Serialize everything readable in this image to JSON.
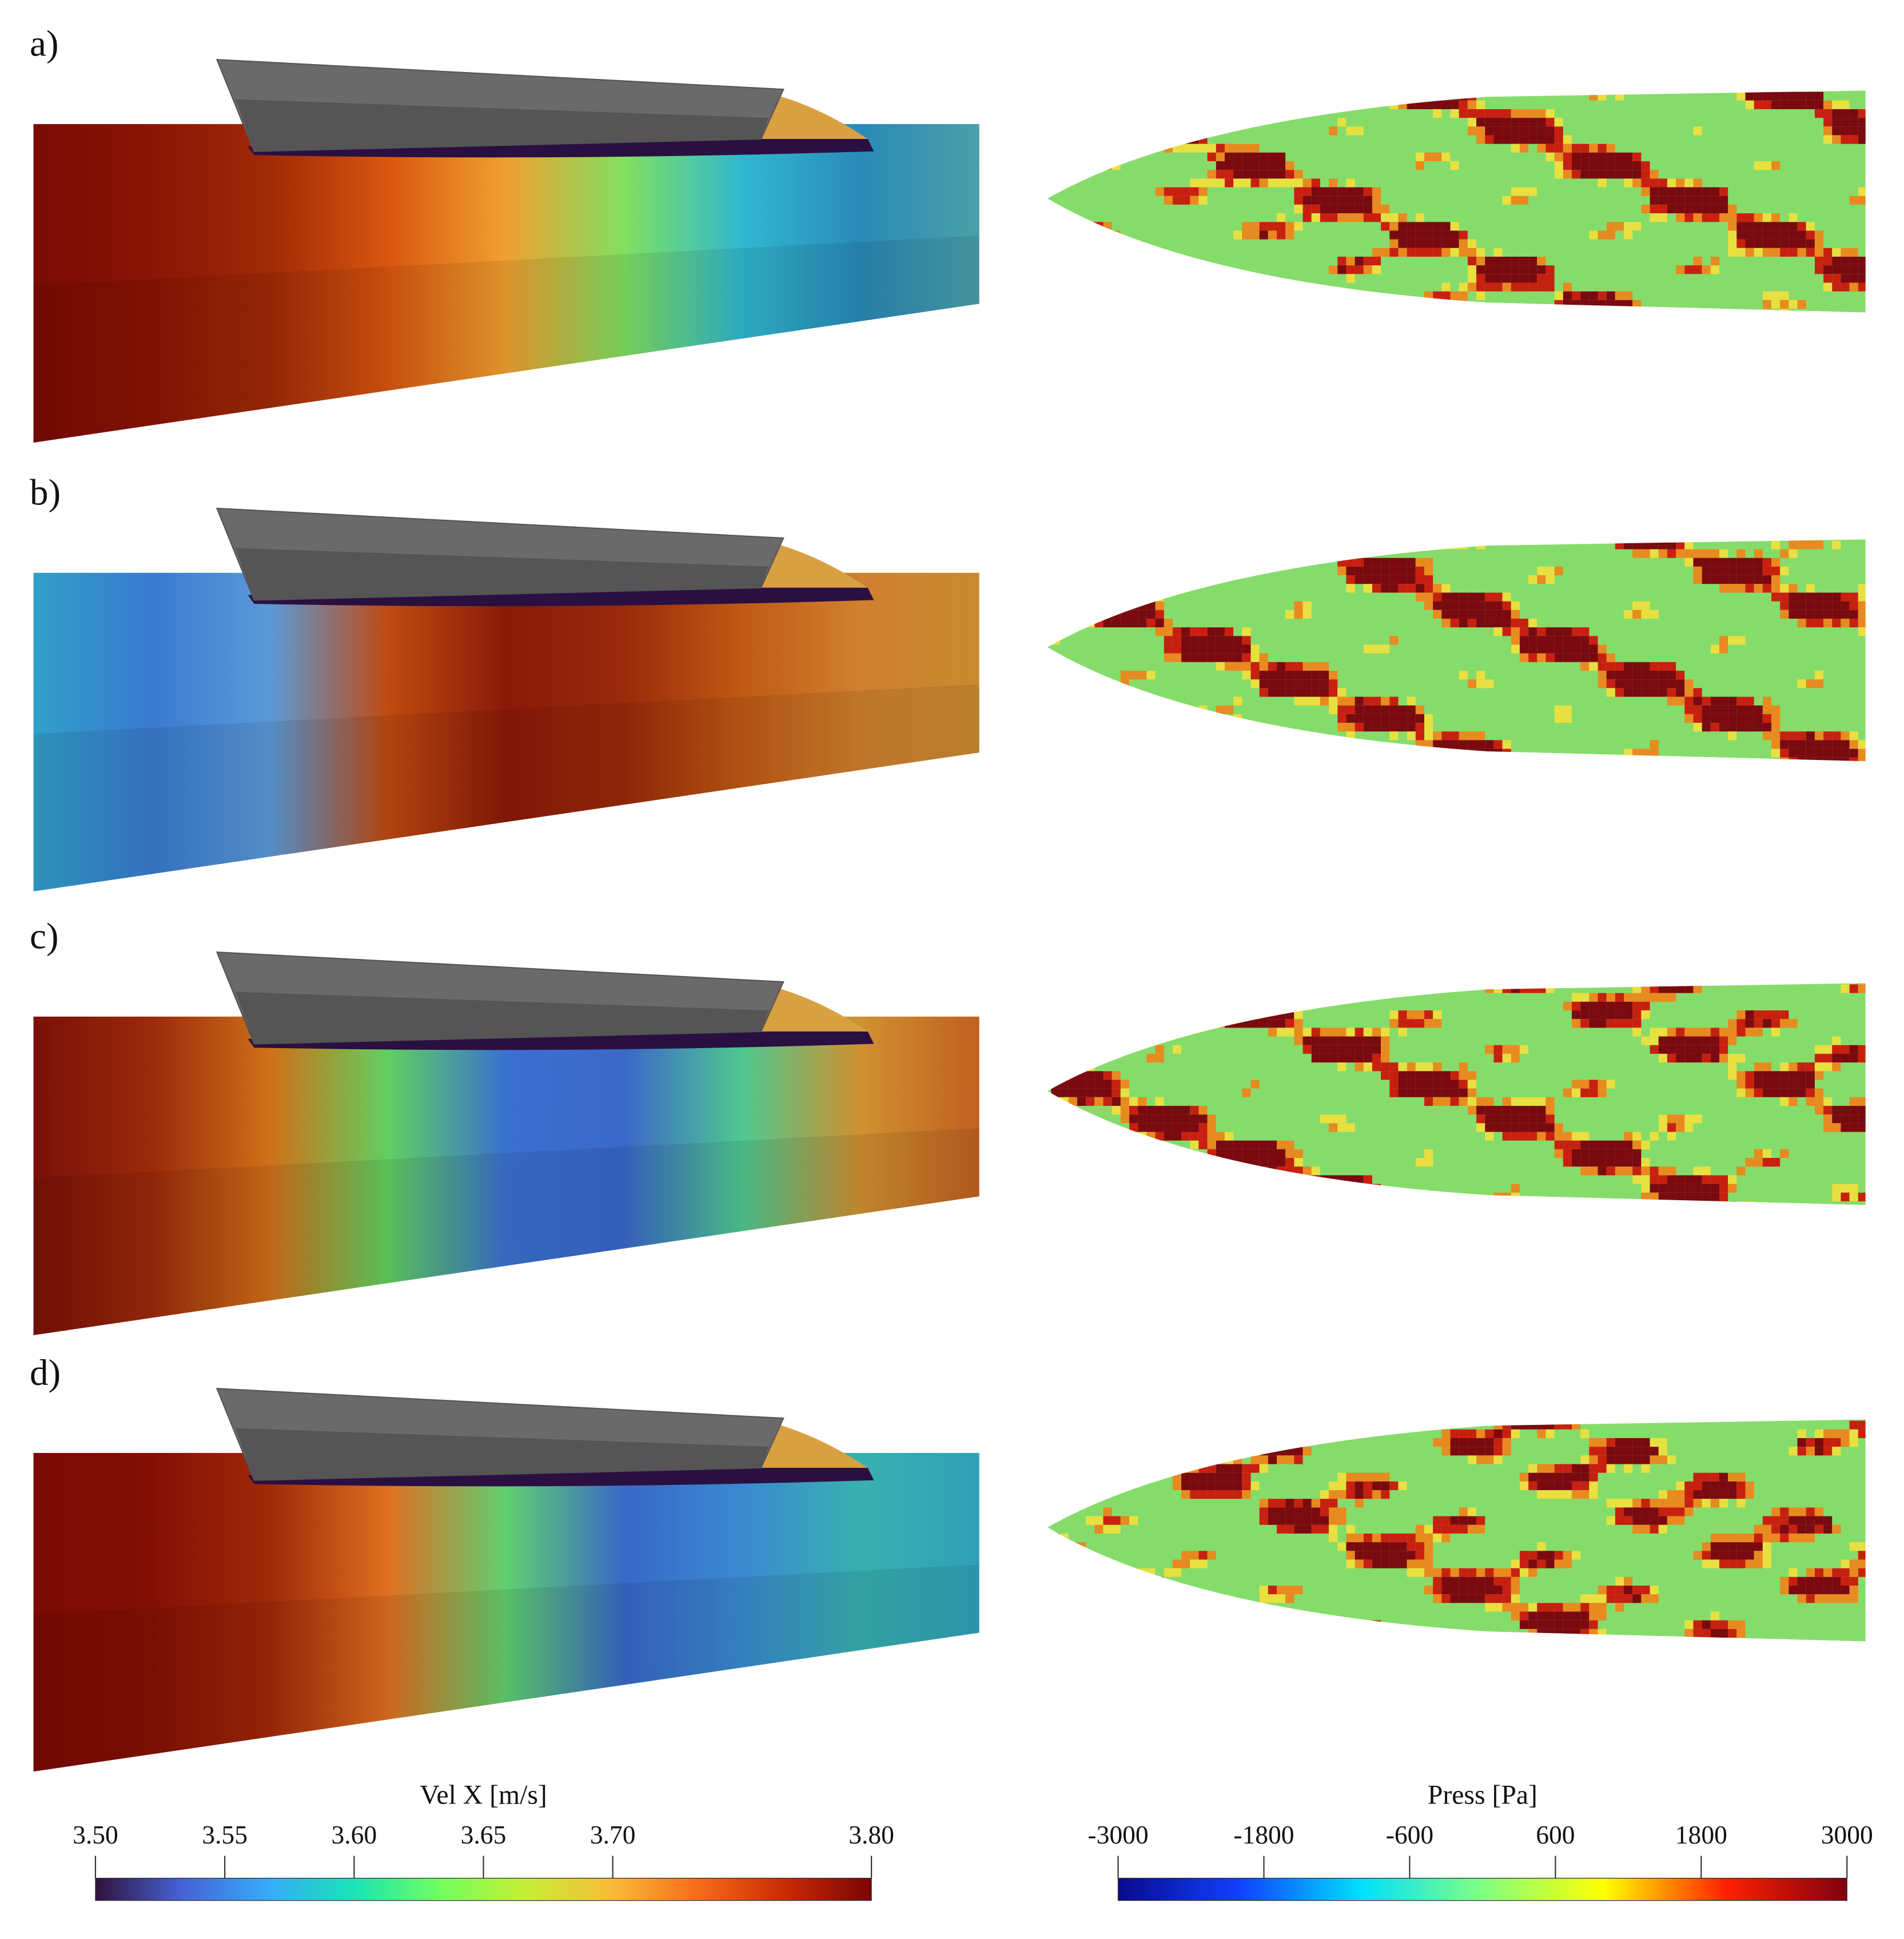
{
  "panels": [
    {
      "label": "a)"
    },
    {
      "label": "b)"
    },
    {
      "label": "c)"
    },
    {
      "label": "d)"
    }
  ],
  "colorbars": [
    {
      "title": "Vel X [m/s]",
      "lim": [
        3.5,
        3.8
      ],
      "ticks": [
        {
          "value": 3.5,
          "label": "3.50"
        },
        3.55,
        {
          "value": 3.6,
          "label": "3.60"
        },
        3.65,
        {
          "value": 3.7,
          "label": "3.70"
        },
        {
          "value": 3.8,
          "label": "3.80"
        }
      ],
      "colors": [
        "#30123b",
        "#4662d7",
        "#36aaf9",
        "#1ae4b6",
        "#72fe5e",
        "#c8ef34",
        "#faba39",
        "#f66b19",
        "#ca2a04",
        "#7a0403"
      ]
    },
    {
      "title": "Press [Pa]",
      "lim": [
        -3000,
        3000
      ],
      "ticks": [
        -3000,
        -1800,
        -600,
        600,
        1800,
        3000
      ],
      "colors": [
        "#0a0a8c",
        "#1040ff",
        "#00e0ff",
        "#80ff80",
        "#ffff00",
        "#ff2000",
        "#800010"
      ]
    }
  ]
}
